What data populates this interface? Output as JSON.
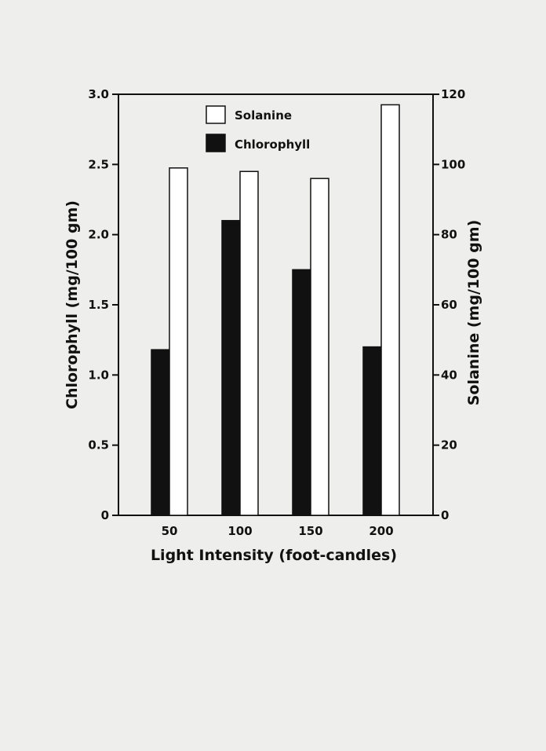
{
  "chart_data": {
    "type": "bar",
    "categories": [
      "50",
      "100",
      "150",
      "200"
    ],
    "series": [
      {
        "name": "Chlorophyll",
        "axis": "left",
        "fill": "#111111",
        "values": [
          1.18,
          2.1,
          1.75,
          1.2
        ]
      },
      {
        "name": "Solanine",
        "axis": "right",
        "fill": "#ffffff",
        "values": [
          99,
          98,
          96,
          117
        ]
      }
    ],
    "xlabel": "Light Intensity (foot-candles)",
    "ylabel_left": "Chlorophyll (mg/100 gm)",
    "ylabel_right": "Solanine (mg/100 gm)",
    "ylim_left": [
      0,
      3.0
    ],
    "ylim_right": [
      0,
      120
    ],
    "yticks_left": [
      "0",
      "0.5",
      "1.0",
      "1.5",
      "2.0",
      "2.5",
      "3.0"
    ],
    "yticks_right": [
      "0",
      "20",
      "40",
      "60",
      "80",
      "100",
      "120"
    ],
    "legend": [
      "Solanine",
      "Chlorophyll"
    ],
    "legend_position": "top-center",
    "grid": false
  }
}
